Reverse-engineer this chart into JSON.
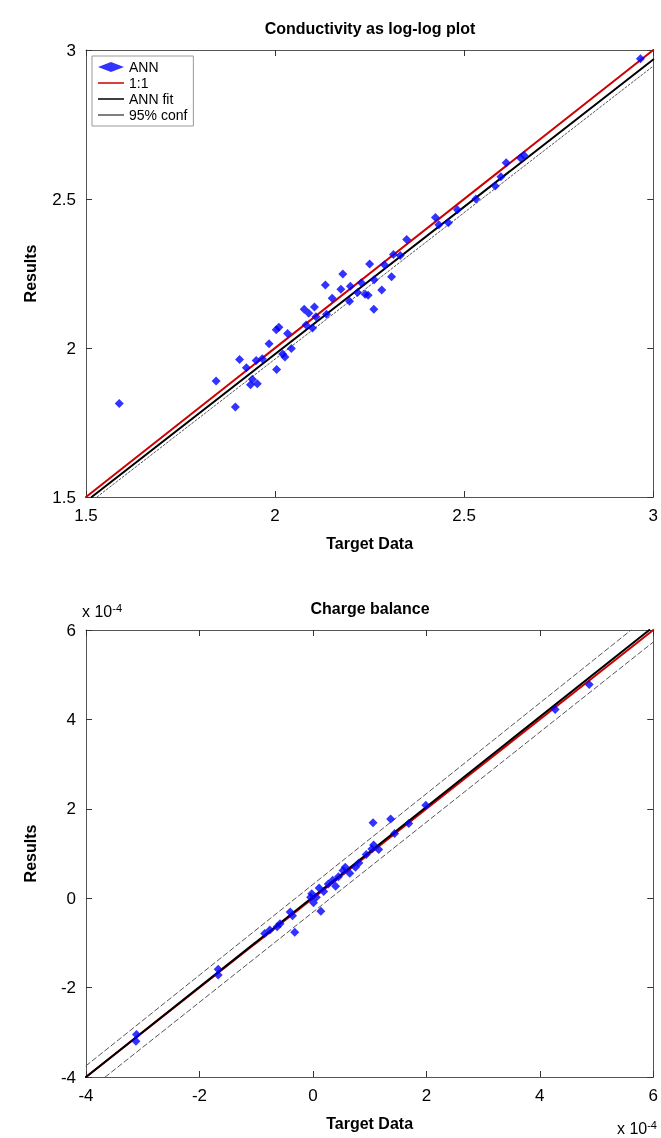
{
  "chart_data": [
    {
      "type": "scatter",
      "title": "Conductivity as log-log plot",
      "xlabel": "Target Data",
      "ylabel": "Results",
      "xlim": [
        1.5,
        3
      ],
      "ylim": [
        1.5,
        3
      ],
      "xticks": [
        1.5,
        2,
        2.5,
        3
      ],
      "yticks": [
        1.5,
        2,
        2.5,
        3
      ],
      "grid": false,
      "legend": "top left",
      "series": [
        {
          "name": "ANN",
          "marker": "diamond",
          "color": "#0000ff",
          "x": [
            1.588,
            1.844,
            1.895,
            1.906,
            1.924,
            1.935,
            1.94,
            1.953,
            1.95,
            1.966,
            1.984,
            2.004,
            2.003,
            2.01,
            2.02,
            2.026,
            2.033,
            2.043,
            2.077,
            2.082,
            2.089,
            2.099,
            2.104,
            2.108,
            2.136,
            2.133,
            2.151,
            2.174,
            2.179,
            2.197,
            2.199,
            2.218,
            2.228,
            2.238,
            2.246,
            2.25,
            2.261,
            2.262,
            2.282,
            2.289,
            2.308,
            2.313,
            2.331,
            2.348,
            2.424,
            2.433,
            2.458,
            2.482,
            2.531,
            2.582,
            2.597,
            2.611,
            2.649,
            2.658,
            2.966
          ],
          "values": [
            1.814,
            1.889,
            1.802,
            1.961,
            1.934,
            1.877,
            1.895,
            1.88,
            1.958,
            1.964,
            2.014,
            1.928,
            2.061,
            2.07,
            1.98,
            1.97,
            2.049,
            1.998,
            2.13,
            2.077,
            2.117,
            2.067,
            2.138,
            2.105,
            2.113,
            2.211,
            2.167,
            2.197,
            2.248,
            2.157,
            2.207,
            2.186,
            2.219,
            2.18,
            2.177,
            2.282,
            2.13,
            2.229,
            2.195,
            2.279,
            2.239,
            2.314,
            2.31,
            2.364,
            2.438,
            2.414,
            2.42,
            2.464,
            2.5,
            2.544,
            2.575,
            2.622,
            2.638,
            2.647,
            2.971
          ]
        },
        {
          "name": "1:1",
          "type": "line",
          "marker": "none",
          "line_style": "solid",
          "color": "#cc0000",
          "x": [
            1.5,
            3
          ],
          "values": [
            1.5,
            3
          ]
        },
        {
          "name": "ANN fit",
          "type": "line",
          "marker": "none",
          "line_style": "solid",
          "color": "#000000",
          "x": [
            1.515,
            3
          ],
          "values": [
            1.5,
            2.968
          ]
        },
        {
          "name": "95% conf",
          "type": "line",
          "marker": "none",
          "line_style": "dotted",
          "color": "#555555",
          "x": [
            1.529,
            3
          ],
          "values": [
            1.5,
            2.946
          ]
        }
      ]
    },
    {
      "type": "scatter",
      "title": "Charge balance",
      "xlabel": "Target Data",
      "ylabel": "Results",
      "xlim": [
        -4,
        6
      ],
      "ylim": [
        -4,
        6
      ],
      "xticks": [
        -4,
        -2,
        0,
        2,
        4,
        6
      ],
      "yticks": [
        -4,
        -2,
        0,
        2,
        4,
        6
      ],
      "grid": false,
      "legend": false,
      "annotations": [
        "x 10$^{-4}$",
        "x 10$^{-4}$"
      ],
      "series": [
        {
          "marker": "diamond",
          "color": "#0000ff",
          "x": [
            -3.11,
            -3.12,
            -1.67,
            -1.67,
            -0.85,
            -0.76,
            -0.63,
            -0.58,
            -0.4,
            -0.36,
            -0.32,
            -0.04,
            -0.02,
            0.01,
            0.06,
            0.11,
            0.14,
            0.19,
            0.27,
            0.35,
            0.4,
            0.45,
            0.53,
            0.57,
            0.65,
            0.75,
            0.81,
            0.94,
            1.04,
            1.07,
            1.06,
            1.16,
            1.37,
            1.44,
            1.69,
            1.99,
            4.27,
            4.87
          ],
          "values": [
            -3.05,
            -3.2,
            -1.59,
            -1.72,
            -0.79,
            -0.71,
            -0.64,
            -0.57,
            -0.31,
            -0.39,
            -0.76,
            0.02,
            0.1,
            -0.1,
            0.02,
            0.23,
            -0.29,
            0.15,
            0.32,
            0.4,
            0.27,
            0.48,
            0.62,
            0.69,
            0.56,
            0.69,
            0.79,
            0.98,
            1.1,
            1.19,
            1.69,
            1.09,
            1.77,
            1.45,
            1.67,
            2.08,
            4.22,
            4.78
          ]
        },
        {
          "type": "line",
          "marker": "none",
          "line_style": "solid",
          "color": "#cc0000",
          "x": [
            -4,
            6
          ],
          "values": [
            -4,
            6
          ]
        },
        {
          "type": "line",
          "marker": "none",
          "line_style": "solid",
          "color": "#000000",
          "x": [
            -4,
            5.93
          ],
          "values": [
            -4,
            6
          ]
        },
        {
          "type": "line",
          "marker": "none",
          "line_style": "dashed",
          "color": "#555555",
          "x": [
            -4,
            5.61
          ],
          "values": [
            -3.75,
            6
          ]
        },
        {
          "type": "line",
          "marker": "none",
          "line_style": "dashed",
          "color": "#555555",
          "x": [
            -3.66,
            6
          ],
          "values": [
            -4,
            5.73
          ]
        }
      ]
    }
  ]
}
